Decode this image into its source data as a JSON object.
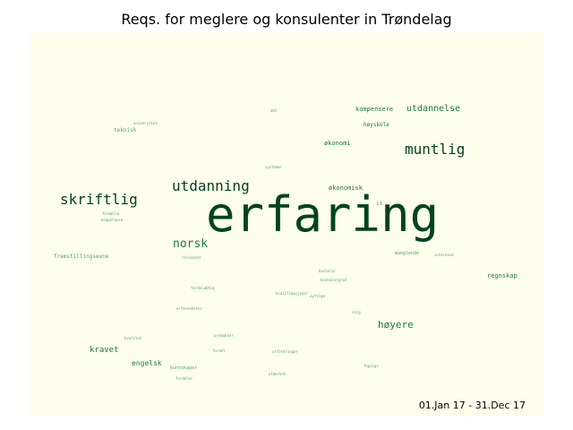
{
  "chart_data": {
    "type": "wordcloud",
    "title": "Reqs. for meglere og konsulenter in Trøndelag",
    "date_range": "01.Jan 17 - 31.Dec 17",
    "colors": {
      "background": "#fefeec",
      "dark": "#00441b",
      "mid": "#1b7a40",
      "light": "#52a56a"
    },
    "words": [
      {
        "text": "erfaring",
        "weight": 100
      },
      {
        "text": "muntlig",
        "weight": 28
      },
      {
        "text": "skriftlig",
        "weight": 27
      },
      {
        "text": "utdanning",
        "weight": 27
      },
      {
        "text": "norsk",
        "weight": 20
      },
      {
        "text": "høyere",
        "weight": 15
      },
      {
        "text": "utdannelse",
        "weight": 14
      },
      {
        "text": "kravet",
        "weight": 13
      },
      {
        "text": "engelsk",
        "weight": 11
      },
      {
        "text": "økonomisk",
        "weight": 10
      },
      {
        "text": "kompensere",
        "weight": 9
      },
      {
        "text": "økonomi",
        "weight": 9
      },
      {
        "text": "høyskole",
        "weight": 8
      },
      {
        "text": "regnskap",
        "weight": 8
      },
      {
        "text": "fremstillingsevne",
        "weight": 7
      },
      {
        "text": "teknisk",
        "weight": 7
      },
      {
        "text": "kunnskaper",
        "weight": 6
      },
      {
        "text": "manglende",
        "weight": 6
      },
      {
        "text": "universitet",
        "weight": 5
      },
      {
        "text": "systemer",
        "weight": 5
      },
      {
        "text": "kvalifikasjoner",
        "weight": 5
      },
      {
        "text": "fagligs",
        "weight": 5
      },
      {
        "text": "bachelorgrad",
        "weight": 5
      },
      {
        "text": "formelle",
        "weight": 5
      },
      {
        "text": "kompetanse",
        "weight": 5
      },
      {
        "text": "erfarenheter",
        "weight": 5
      },
      {
        "text": "dbt",
        "weight": 4
      },
      {
        "text": "it",
        "weight": 4
      },
      {
        "text": "relevante",
        "weight": 4
      },
      {
        "text": "fordelaktig",
        "weight": 4
      },
      {
        "text": "utfordringer",
        "weight": 4
      },
      {
        "text": "bachelor",
        "weight": 4
      },
      {
        "text": "fordel",
        "weight": 4
      },
      {
        "text": "nyttige",
        "weight": 4
      },
      {
        "text": "salg",
        "weight": 4
      },
      {
        "text": "produkter",
        "weight": 4
      },
      {
        "text": "kvalitet",
        "weight": 4
      },
      {
        "text": "fordeler",
        "weight": 4
      },
      {
        "text": "utmerket",
        "weight": 4
      },
      {
        "text": "interesse",
        "weight": 4
      }
    ]
  }
}
